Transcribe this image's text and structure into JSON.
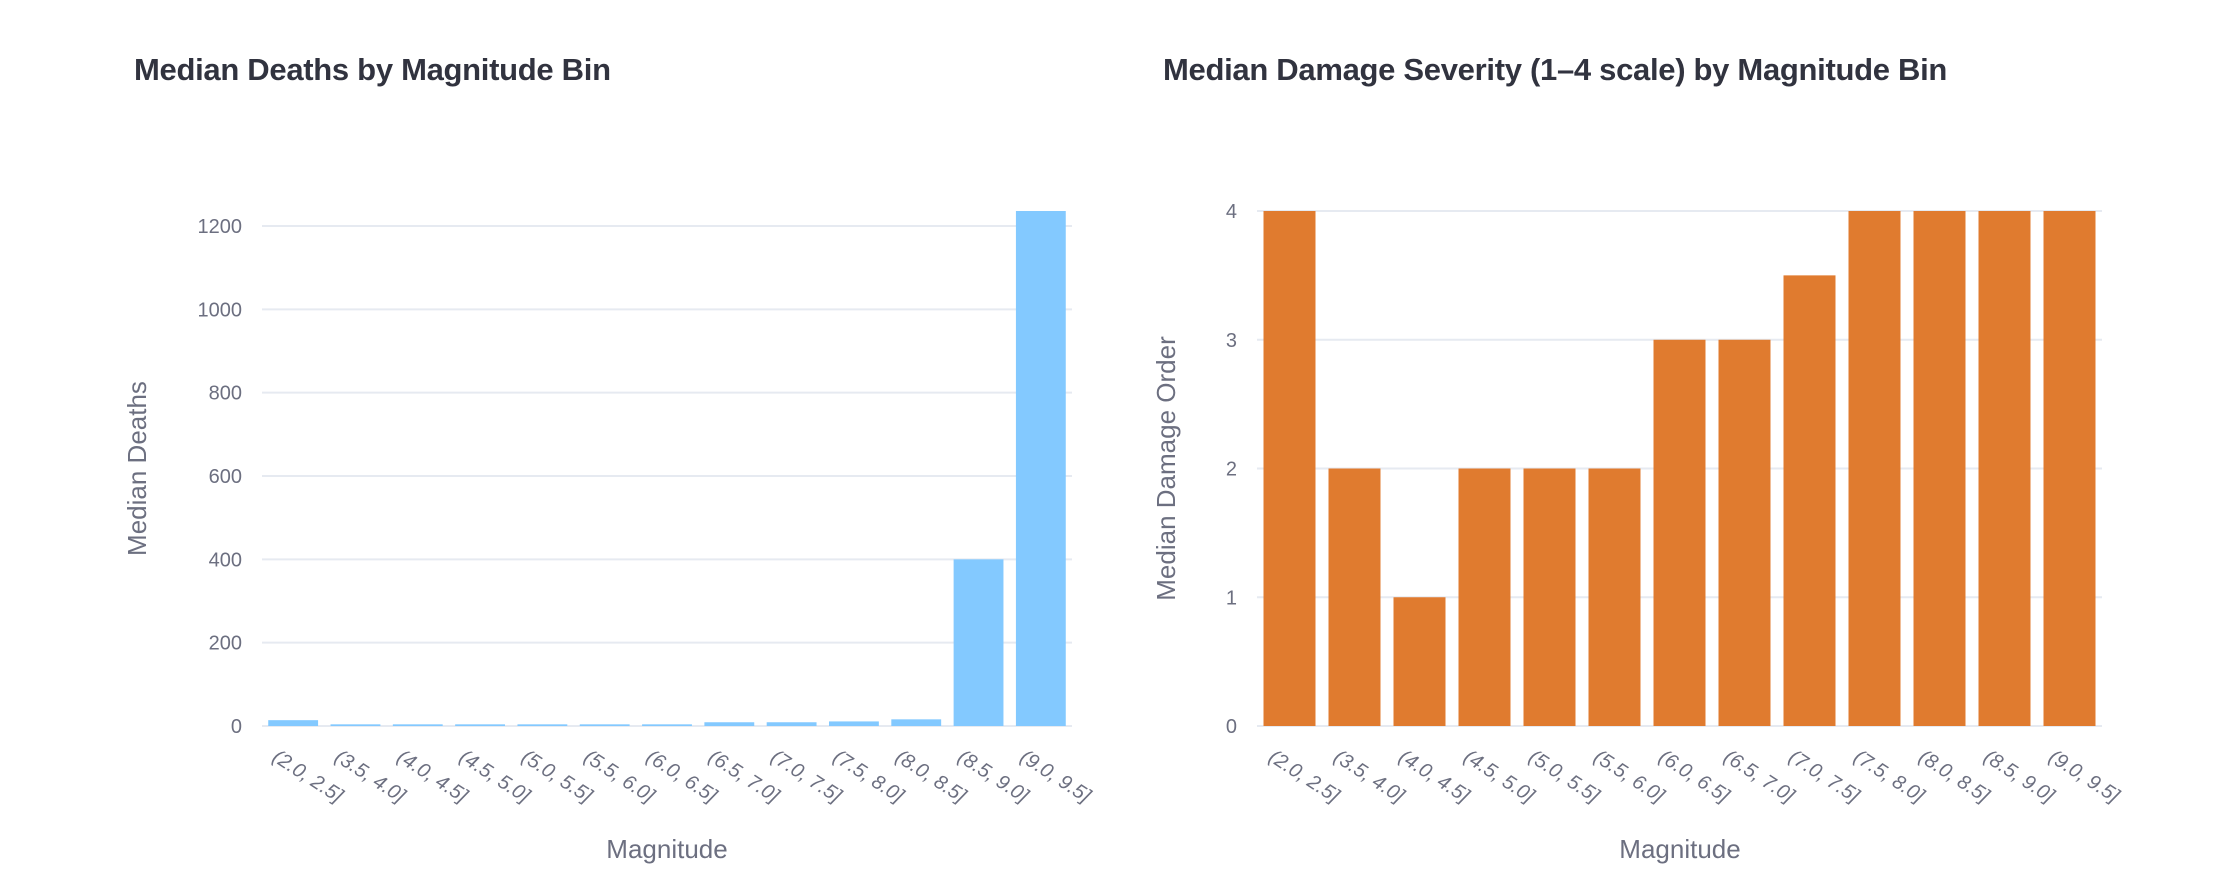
{
  "colors": {
    "deaths_bar": "#83c9ff",
    "damage_bar": "#e07b2f",
    "grid": "#e6eaf1",
    "axis_text": "#6c6f80",
    "title_text": "#31333f"
  },
  "chart_data": [
    {
      "type": "bar",
      "title": "Median Deaths by Magnitude Bin",
      "xlabel": "Magnitude",
      "ylabel": "Median Deaths",
      "categories": [
        "(2.0, 2.5]",
        "(3.5, 4.0]",
        "(4.0, 4.5]",
        "(4.5, 5.0]",
        "(5.0, 5.5]",
        "(5.5, 6.0]",
        "(6.0, 6.5]",
        "(6.5, 7.0]",
        "(7.0, 7.5]",
        "(7.5, 8.0]",
        "(8.0, 8.5]",
        "(8.5, 9.0]",
        "(9.0, 9.5]"
      ],
      "values": [
        14,
        4,
        4,
        4,
        4,
        4,
        4,
        9,
        9,
        11,
        16,
        400,
        1236
      ],
      "ylim": [
        0,
        1236
      ],
      "yticks": [
        0,
        200,
        400,
        600,
        800,
        1000,
        1200
      ],
      "ytick_labels": [
        "0",
        "200",
        "400",
        "600",
        "800",
        "1000",
        "1200"
      ],
      "grid": true,
      "legend": "none"
    },
    {
      "type": "bar",
      "title": "Median Damage Severity (1–4 scale) by Magnitude Bin",
      "xlabel": "Magnitude",
      "ylabel": "Median Damage Order",
      "categories": [
        "(2.0, 2.5]",
        "(3.5, 4.0]",
        "(4.0, 4.5]",
        "(4.5, 5.0]",
        "(5.0, 5.5]",
        "(5.5, 6.0]",
        "(6.0, 6.5]",
        "(6.5, 7.0]",
        "(7.0, 7.5]",
        "(7.5, 8.0]",
        "(8.0, 8.5]",
        "(8.5, 9.0]",
        "(9.0, 9.5]"
      ],
      "values": [
        4,
        2,
        1,
        2,
        2,
        2,
        3,
        3,
        3.5,
        4,
        4,
        4,
        4
      ],
      "ylim": [
        0,
        4
      ],
      "yticks": [
        0,
        1,
        2,
        3,
        4
      ],
      "ytick_labels": [
        "0",
        "1",
        "2",
        "3",
        "4"
      ],
      "grid": true,
      "legend": "none"
    }
  ]
}
